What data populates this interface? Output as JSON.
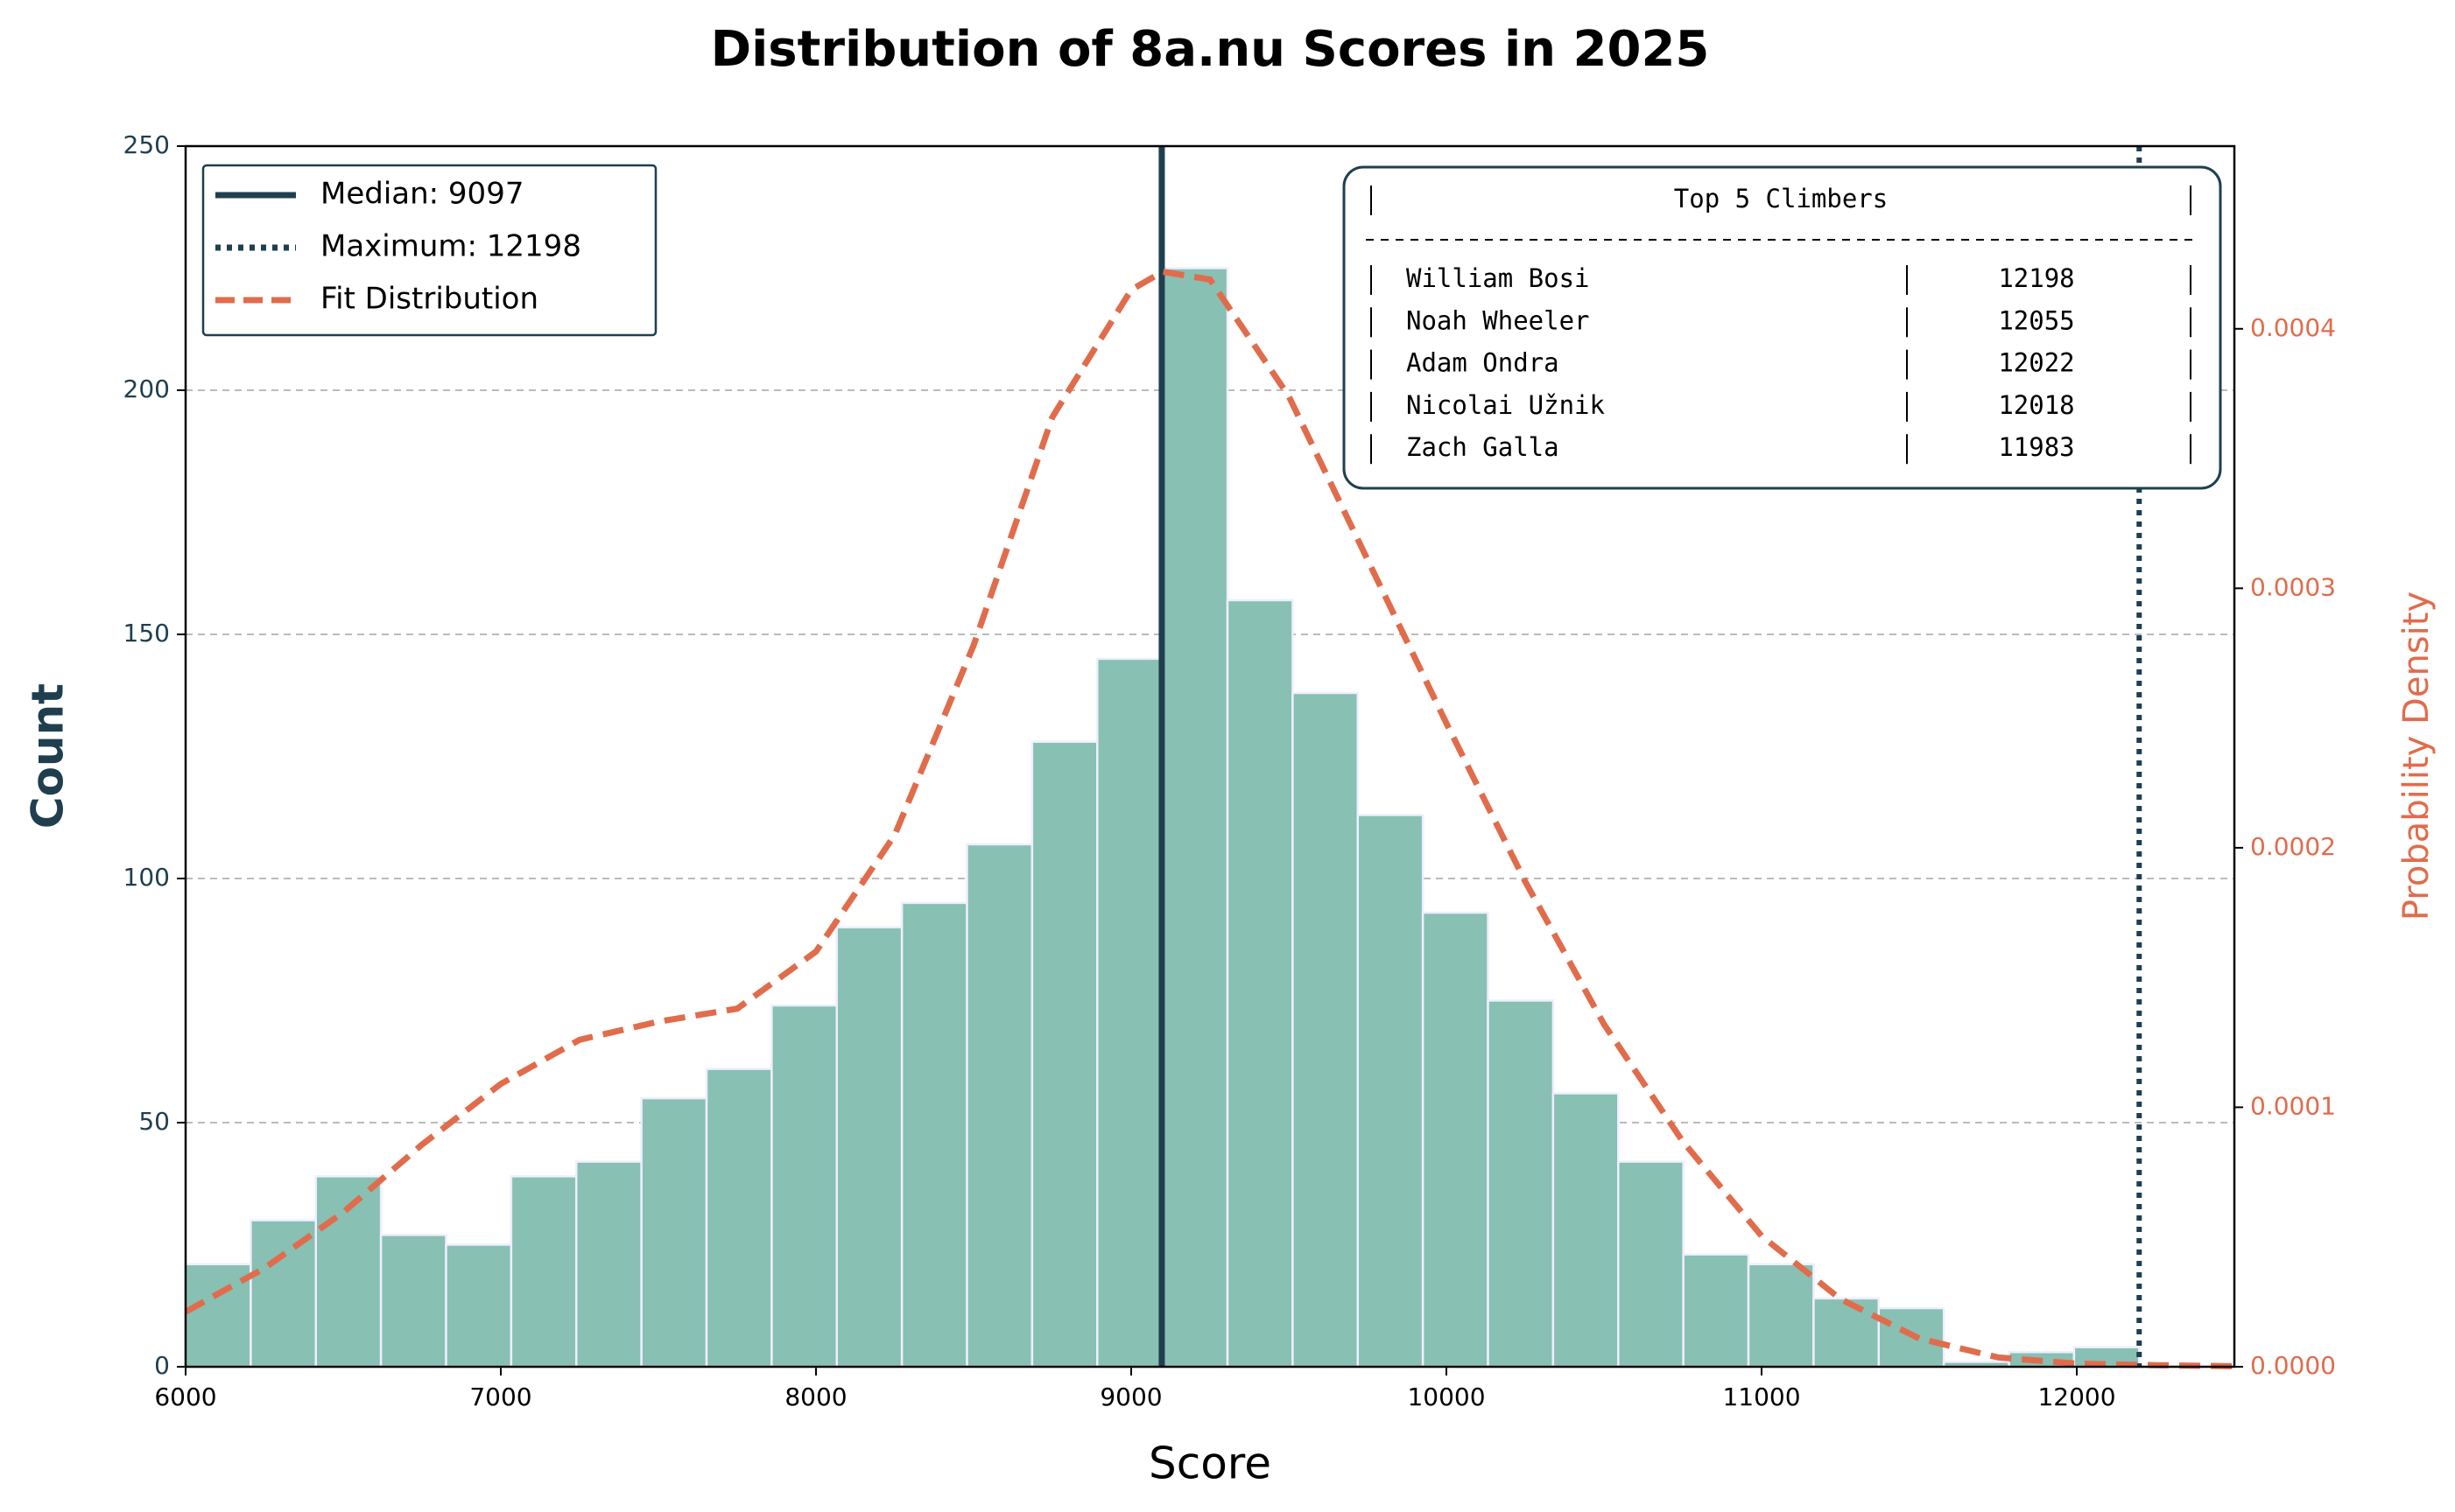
{
  "chart_data": {
    "type": "histogram",
    "title": "Distribution of 8a.nu Scores in 2025",
    "x_label": "Score",
    "y_label": "Count",
    "y2_label": "Probability Density",
    "bins": [
      6000,
      6206.6,
      6413.2,
      6619.8,
      6826.4,
      7033,
      7239.6,
      7446.2,
      7652.8,
      7859.4,
      8066,
      8272.6,
      8479.2,
      8685.8,
      8892.4,
      9099,
      9305.6,
      9512.2,
      9718.8,
      9925.4,
      10132,
      10338.6,
      10545.2,
      10751.8,
      10958.4,
      11165,
      11371.6,
      11578.2,
      11784.8,
      11991.4,
      12198
    ],
    "counts": [
      21,
      30,
      39,
      27,
      25,
      39,
      42,
      55,
      61,
      74,
      90,
      95,
      107,
      128,
      145,
      225,
      157,
      138,
      113,
      93,
      75,
      56,
      42,
      23,
      21,
      14,
      12,
      1,
      3,
      4
    ],
    "color": "#88c0b3",
    "series": [
      {
        "name": "Fit Distribution",
        "color": "#e06c4c",
        "axis": "y2",
        "x": [
          6000,
          6250,
          6500,
          6750,
          7000,
          7250,
          7500,
          7750,
          8000,
          8250,
          8500,
          8750,
          9000,
          9100,
          9250,
          9500,
          9750,
          10000,
          10250,
          10500,
          10750,
          11000,
          11250,
          11500,
          11750,
          12000,
          12250,
          12500
        ],
        "values": [
          2.12e-05,
          3.8e-05,
          5.95e-05,
          8.56e-05,
          0.000109,
          0.000126,
          0.000133,
          0.000138,
          0.00016,
          0.000205,
          0.000278,
          0.000366,
          0.000415,
          0.000422,
          0.000419,
          0.000374,
          0.000311,
          0.000248,
          0.000187,
          0.000132,
          8.68e-05,
          5.04e-05,
          2.61e-05,
          1.09e-05,
          3.6e-06,
          1.2e-06,
          6e-07,
          2e-07
        ]
      }
    ],
    "reference_lines": [
      {
        "name": "Median: 9097",
        "value": 9097,
        "style": "solid",
        "color": "#1f3f4f"
      },
      {
        "name": "Maximum: 12198",
        "value": 12198,
        "style": "dotted",
        "color": "#1f3f4f"
      }
    ],
    "xlim": [
      6000,
      12500
    ],
    "xticks": [
      6000,
      7000,
      8000,
      9000,
      10000,
      11000,
      12000
    ],
    "ylim": [
      0,
      250
    ],
    "yticks": [
      0,
      50,
      100,
      150,
      200,
      250
    ],
    "y2lim": [
      0,
      0.0004704
    ],
    "y2ticks": [
      {
        "value": 0,
        "label": "0.0000"
      },
      {
        "value": 0.0001,
        "label": "0.0001"
      },
      {
        "value": 0.0002,
        "label": "0.0002"
      },
      {
        "value": 0.0003,
        "label": "0.0003"
      },
      {
        "value": 0.0004,
        "label": "0.0004"
      }
    ],
    "grid": true,
    "legend": "upper left",
    "table": {
      "title": "Top 5 Climbers",
      "rows": [
        [
          "William Bosi",
          "12198"
        ],
        [
          "Noah Wheeler",
          "12055"
        ],
        [
          "Adam Ondra",
          "12022"
        ],
        [
          "Nicolai Užnik",
          "12018"
        ],
        [
          "Zach Galla",
          "11983"
        ]
      ]
    }
  }
}
